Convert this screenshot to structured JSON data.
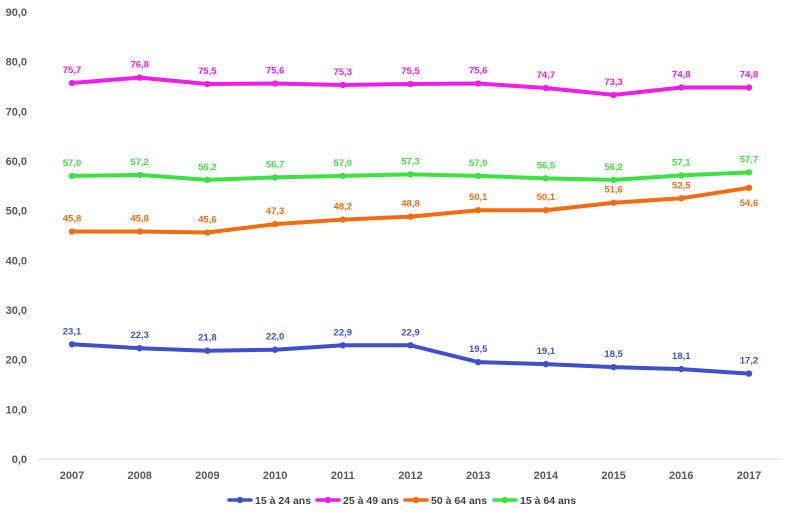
{
  "chart_data": {
    "type": "line",
    "categories": [
      "2007",
      "2008",
      "2009",
      "2010",
      "2011",
      "2012",
      "2013",
      "2014",
      "2015",
      "2016",
      "2017"
    ],
    "ylim": [
      0,
      90
    ],
    "yticks": [
      0,
      10,
      20,
      30,
      40,
      50,
      60,
      70,
      80,
      90
    ],
    "ytick_labels": [
      "0,0",
      "10,0",
      "20,0",
      "30,0",
      "40,0",
      "50,0",
      "60,0",
      "70,0",
      "80,0",
      "90,0"
    ],
    "grid": false,
    "legend_position": "bottom",
    "series": [
      {
        "name": "15 à 24 ans",
        "color": "#3f51c8",
        "values": [
          23.1,
          22.3,
          21.8,
          22.0,
          22.9,
          22.9,
          19.5,
          19.1,
          18.5,
          18.1,
          17.2
        ],
        "labels": [
          "23,1",
          "22,3",
          "21,8",
          "22,0",
          "22,9",
          "22,9",
          "19,5",
          "19,1",
          "18,5",
          "18,1",
          "17,2"
        ],
        "label_side": "above"
      },
      {
        "name": "25 à 49 ans",
        "color": "#ee1ee6",
        "values": [
          75.7,
          76.8,
          75.5,
          75.6,
          75.3,
          75.5,
          75.6,
          74.7,
          73.3,
          74.8,
          74.8
        ],
        "labels": [
          "75,7",
          "76,8",
          "75,5",
          "75,6",
          "75,3",
          "75,5",
          "75,6",
          "74,7",
          "73,3",
          "74,8",
          "74,8"
        ],
        "label_side": "above"
      },
      {
        "name": "50 à 64 ans",
        "color": "#f26c12",
        "values": [
          45.8,
          45.8,
          45.6,
          47.3,
          48.2,
          48.8,
          50.1,
          50.1,
          51.6,
          52.5,
          54.6
        ],
        "labels": [
          "45,8",
          "45,8",
          "45,6",
          "47,3",
          "48,2",
          "48,8",
          "50,1",
          "50,1",
          "51,6",
          "52,5",
          "54,6"
        ],
        "label_side": [
          "above",
          "above",
          "above",
          "above",
          "above",
          "above",
          "above",
          "above",
          "above",
          "above",
          "below"
        ]
      },
      {
        "name": "15 à 64 ans",
        "color": "#3fe043",
        "values": [
          57.0,
          57.2,
          56.2,
          56.7,
          57.0,
          57.3,
          57.0,
          56.5,
          56.2,
          57.1,
          57.7
        ],
        "labels": [
          "57,0",
          "57,2",
          "56,2",
          "56,7",
          "57,0",
          "57,3",
          "57,0",
          "56,5",
          "56,2",
          "57,1",
          "57,7"
        ],
        "label_side": "above"
      }
    ]
  }
}
